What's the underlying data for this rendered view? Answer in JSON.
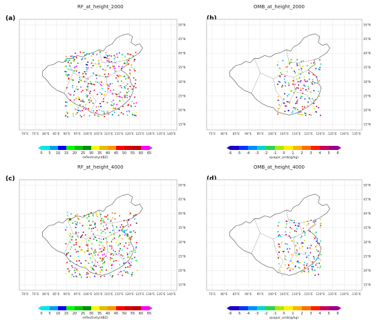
{
  "panels": [
    {
      "id": "a",
      "label": "(a)",
      "title": "RF_at_height_2000",
      "cbar_label": "reflectivity(dBZ)",
      "cbar_ticks": [
        "0",
        "5",
        "10",
        "15",
        "20",
        "25",
        "30",
        "35",
        "40",
        "45",
        "50",
        "55",
        "60",
        "65"
      ],
      "lon_ticks": [
        "70°E",
        "75°E",
        "80°E",
        "85°E",
        "90°E",
        "95°E",
        "100°E",
        "105°E",
        "110°E",
        "115°E",
        "120°E",
        "125°E",
        "130°E",
        "135°E",
        "140°E"
      ],
      "lat_ticks": [
        "50°N",
        "45°N",
        "40°N",
        "35°N",
        "30°N",
        "25°N",
        "20°N",
        "15°N"
      ]
    },
    {
      "id": "b",
      "label": "(b)",
      "title": "OMB_at_height_2000",
      "cbar_label": "qvapor_omb(g/kg)",
      "cbar_ticks": [
        "-6",
        "-5",
        "-4",
        "-3",
        "-2",
        "-1",
        "0",
        "1",
        "2",
        "3",
        "4",
        "5",
        "6"
      ],
      "lon_ticks": [
        "75°E",
        "80°E",
        "85°E",
        "90°E",
        "95°E",
        "100°E",
        "105°E",
        "110°E",
        "115°E",
        "120°E",
        "125°E",
        "130°E",
        "135°E"
      ],
      "lat_ticks": [
        "50°N",
        "45°N",
        "40°N",
        "35°N",
        "30°N",
        "25°N",
        "20°N",
        "15°N"
      ]
    },
    {
      "id": "c",
      "label": "(c)",
      "title": "RF_at_height_4000",
      "cbar_label": "reflectivity(dBZ)",
      "cbar_ticks": [
        "0",
        "5",
        "10",
        "15",
        "20",
        "25",
        "30",
        "35",
        "40",
        "45",
        "50",
        "55",
        "60",
        "65"
      ],
      "lon_ticks": [
        "70°E",
        "75°E",
        "80°E",
        "85°E",
        "90°E",
        "95°E",
        "100°E",
        "105°E",
        "110°E",
        "115°E",
        "120°E",
        "125°E",
        "130°E",
        "135°E",
        "140°E"
      ],
      "lat_ticks": [
        "50°N",
        "45°N",
        "40°N",
        "35°N",
        "30°N",
        "25°N",
        "20°N",
        "15°N"
      ]
    },
    {
      "id": "d",
      "label": "(d)",
      "title": "OMB_at_height_4000",
      "cbar_label": "qvapor_omb(g/kg)",
      "cbar_ticks": [
        "-6",
        "-5",
        "-4",
        "-3",
        "-2",
        "-1",
        "0",
        "1",
        "2",
        "3",
        "4",
        "5",
        "6"
      ],
      "lon_ticks": [
        "75°E",
        "80°E",
        "85°E",
        "90°E",
        "95°E",
        "100°E",
        "105°E",
        "110°E",
        "115°E",
        "120°E",
        "125°E",
        "130°E",
        "135°E"
      ],
      "lat_ticks": [
        "50°N",
        "45°N",
        "40°N",
        "35°N",
        "30°N",
        "25°N",
        "20°N",
        "15°N"
      ]
    }
  ],
  "colors": {
    "rf_scale": [
      "#04e9e7",
      "#019ff4",
      "#0300f4",
      "#02fd02",
      "#01c501",
      "#008e00",
      "#fdf802",
      "#e5bc00",
      "#fd9500",
      "#fd0000",
      "#d40000",
      "#bc0000",
      "#f800fd",
      "#9854c6"
    ],
    "omb_scale": [
      "#1a00c8",
      "#0035ff",
      "#0090ff",
      "#00d4d4",
      "#2fd44a",
      "#b4e600",
      "#fff000",
      "#ffb400",
      "#ff6e00",
      "#ff1e00",
      "#c8005a",
      "#9b008c"
    ]
  }
}
